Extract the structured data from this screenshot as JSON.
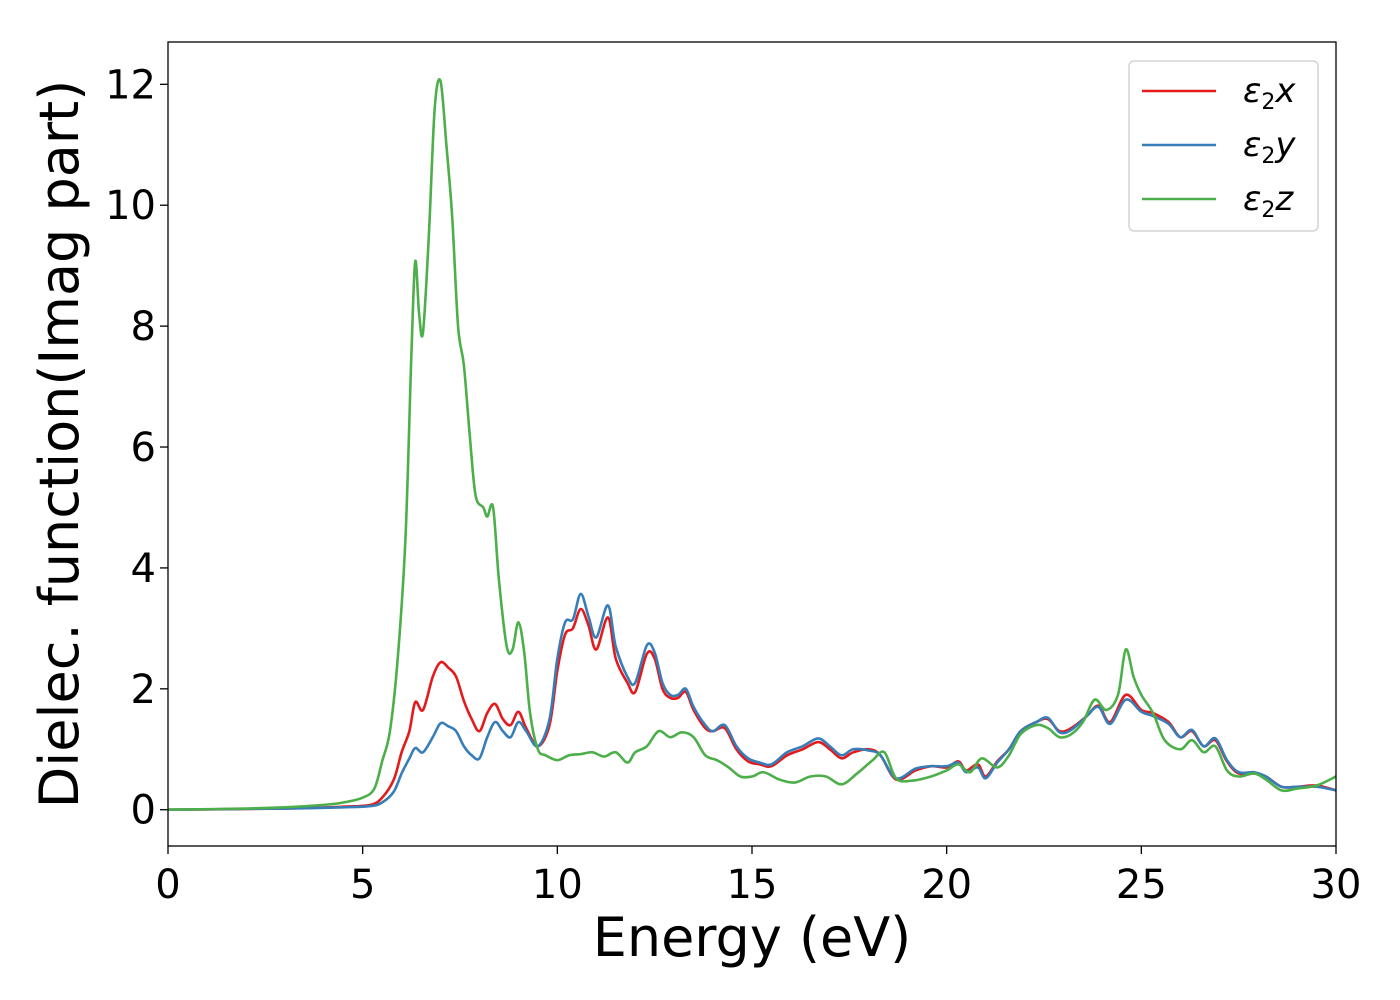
{
  "chart_data": {
    "type": "line",
    "title": "",
    "xlabel": "Energy (eV)",
    "ylabel": "Dielec. function(Imag part)",
    "xlim": [
      0,
      30
    ],
    "ylim": [
      -0.6,
      12.7
    ],
    "xticks": [
      "0",
      "5",
      "10",
      "15",
      "20",
      "25",
      "30"
    ],
    "yticks": [
      "0",
      "2",
      "4",
      "6",
      "8",
      "10",
      "12"
    ],
    "grid": false,
    "legend_position": "top-right",
    "series": [
      {
        "name": "ε2x",
        "legend_base": "ε",
        "legend_sub": "2",
        "legend_var": "x",
        "color": "#e41a1c",
        "points": [
          [
            0,
            0
          ],
          [
            3,
            0.02
          ],
          [
            4.5,
            0.05
          ],
          [
            5.2,
            0.08
          ],
          [
            5.5,
            0.2
          ],
          [
            5.8,
            0.5
          ],
          [
            6.0,
            0.95
          ],
          [
            6.2,
            1.3
          ],
          [
            6.35,
            1.78
          ],
          [
            6.55,
            1.65
          ],
          [
            6.8,
            2.2
          ],
          [
            7.0,
            2.44
          ],
          [
            7.2,
            2.35
          ],
          [
            7.4,
            2.2
          ],
          [
            7.6,
            1.8
          ],
          [
            7.8,
            1.5
          ],
          [
            8.0,
            1.3
          ],
          [
            8.2,
            1.6
          ],
          [
            8.4,
            1.75
          ],
          [
            8.6,
            1.5
          ],
          [
            8.8,
            1.4
          ],
          [
            9.0,
            1.62
          ],
          [
            9.2,
            1.35
          ],
          [
            9.5,
            1.05
          ],
          [
            9.8,
            1.4
          ],
          [
            10.0,
            2.3
          ],
          [
            10.2,
            2.9
          ],
          [
            10.4,
            3.0
          ],
          [
            10.6,
            3.32
          ],
          [
            10.8,
            3.05
          ],
          [
            11.0,
            2.65
          ],
          [
            11.3,
            3.18
          ],
          [
            11.5,
            2.5
          ],
          [
            11.8,
            2.1
          ],
          [
            12.0,
            1.95
          ],
          [
            12.3,
            2.58
          ],
          [
            12.5,
            2.5
          ],
          [
            12.7,
            2.0
          ],
          [
            12.9,
            1.85
          ],
          [
            13.1,
            1.85
          ],
          [
            13.3,
            1.95
          ],
          [
            13.5,
            1.65
          ],
          [
            13.8,
            1.35
          ],
          [
            14.0,
            1.3
          ],
          [
            14.3,
            1.35
          ],
          [
            14.6,
            1.0
          ],
          [
            14.9,
            0.8
          ],
          [
            15.2,
            0.75
          ],
          [
            15.5,
            0.72
          ],
          [
            15.9,
            0.9
          ],
          [
            16.3,
            1.0
          ],
          [
            16.7,
            1.12
          ],
          [
            17.0,
            1.0
          ],
          [
            17.3,
            0.85
          ],
          [
            17.6,
            0.95
          ],
          [
            18.0,
            1.0
          ],
          [
            18.3,
            0.9
          ],
          [
            18.7,
            0.5
          ],
          [
            19.2,
            0.65
          ],
          [
            19.6,
            0.72
          ],
          [
            20.0,
            0.7
          ],
          [
            20.3,
            0.8
          ],
          [
            20.5,
            0.65
          ],
          [
            20.8,
            0.75
          ],
          [
            21.0,
            0.55
          ],
          [
            21.3,
            0.8
          ],
          [
            21.6,
            1.0
          ],
          [
            21.9,
            1.3
          ],
          [
            22.3,
            1.45
          ],
          [
            22.6,
            1.5
          ],
          [
            22.9,
            1.3
          ],
          [
            23.2,
            1.35
          ],
          [
            23.6,
            1.55
          ],
          [
            23.9,
            1.72
          ],
          [
            24.2,
            1.45
          ],
          [
            24.6,
            1.9
          ],
          [
            25.0,
            1.65
          ],
          [
            25.3,
            1.6
          ],
          [
            25.7,
            1.45
          ],
          [
            26.0,
            1.2
          ],
          [
            26.3,
            1.3
          ],
          [
            26.6,
            1.05
          ],
          [
            26.9,
            1.15
          ],
          [
            27.2,
            0.8
          ],
          [
            27.5,
            0.6
          ],
          [
            27.9,
            0.6
          ],
          [
            28.2,
            0.55
          ],
          [
            28.6,
            0.38
          ],
          [
            29.0,
            0.38
          ],
          [
            29.5,
            0.4
          ],
          [
            30.0,
            0.32
          ]
        ]
      },
      {
        "name": "ε2y",
        "legend_base": "ε",
        "legend_sub": "2",
        "legend_var": "y",
        "color": "#377eb8",
        "points": [
          [
            0,
            0
          ],
          [
            3,
            0.02
          ],
          [
            4.5,
            0.04
          ],
          [
            5.2,
            0.06
          ],
          [
            5.5,
            0.12
          ],
          [
            5.8,
            0.3
          ],
          [
            6.0,
            0.6
          ],
          [
            6.2,
            0.85
          ],
          [
            6.35,
            1.02
          ],
          [
            6.55,
            0.95
          ],
          [
            6.8,
            1.2
          ],
          [
            7.0,
            1.43
          ],
          [
            7.2,
            1.38
          ],
          [
            7.4,
            1.3
          ],
          [
            7.6,
            1.05
          ],
          [
            7.8,
            0.9
          ],
          [
            8.0,
            0.85
          ],
          [
            8.2,
            1.2
          ],
          [
            8.4,
            1.45
          ],
          [
            8.6,
            1.3
          ],
          [
            8.8,
            1.2
          ],
          [
            9.0,
            1.45
          ],
          [
            9.2,
            1.3
          ],
          [
            9.5,
            1.05
          ],
          [
            9.8,
            1.5
          ],
          [
            10.0,
            2.5
          ],
          [
            10.2,
            3.1
          ],
          [
            10.4,
            3.15
          ],
          [
            10.6,
            3.57
          ],
          [
            10.8,
            3.2
          ],
          [
            11.0,
            2.85
          ],
          [
            11.3,
            3.38
          ],
          [
            11.5,
            2.7
          ],
          [
            11.8,
            2.2
          ],
          [
            12.0,
            2.1
          ],
          [
            12.3,
            2.72
          ],
          [
            12.5,
            2.6
          ],
          [
            12.7,
            2.1
          ],
          [
            12.9,
            1.9
          ],
          [
            13.1,
            1.9
          ],
          [
            13.3,
            2.0
          ],
          [
            13.5,
            1.7
          ],
          [
            13.8,
            1.4
          ],
          [
            14.0,
            1.3
          ],
          [
            14.3,
            1.4
          ],
          [
            14.6,
            1.05
          ],
          [
            14.9,
            0.85
          ],
          [
            15.2,
            0.78
          ],
          [
            15.5,
            0.75
          ],
          [
            15.9,
            0.95
          ],
          [
            16.3,
            1.05
          ],
          [
            16.7,
            1.18
          ],
          [
            17.0,
            1.05
          ],
          [
            17.3,
            0.9
          ],
          [
            17.6,
            1.0
          ],
          [
            18.0,
            0.98
          ],
          [
            18.3,
            0.9
          ],
          [
            18.7,
            0.52
          ],
          [
            19.2,
            0.68
          ],
          [
            19.6,
            0.72
          ],
          [
            20.0,
            0.72
          ],
          [
            20.3,
            0.78
          ],
          [
            20.5,
            0.62
          ],
          [
            20.8,
            0.7
          ],
          [
            21.0,
            0.52
          ],
          [
            21.3,
            0.78
          ],
          [
            21.6,
            1.0
          ],
          [
            21.9,
            1.3
          ],
          [
            22.3,
            1.45
          ],
          [
            22.6,
            1.52
          ],
          [
            22.9,
            1.28
          ],
          [
            23.2,
            1.32
          ],
          [
            23.6,
            1.55
          ],
          [
            23.9,
            1.7
          ],
          [
            24.2,
            1.42
          ],
          [
            24.6,
            1.82
          ],
          [
            25.0,
            1.62
          ],
          [
            25.3,
            1.55
          ],
          [
            25.7,
            1.42
          ],
          [
            26.0,
            1.2
          ],
          [
            26.3,
            1.32
          ],
          [
            26.6,
            1.05
          ],
          [
            26.9,
            1.18
          ],
          [
            27.2,
            0.82
          ],
          [
            27.5,
            0.62
          ],
          [
            27.9,
            0.62
          ],
          [
            28.2,
            0.55
          ],
          [
            28.6,
            0.38
          ],
          [
            29.0,
            0.38
          ],
          [
            29.5,
            0.38
          ],
          [
            30.0,
            0.32
          ]
        ]
      },
      {
        "name": "ε2z",
        "legend_base": "ε",
        "legend_sub": "2",
        "legend_var": "z",
        "color": "#4daf4a",
        "points": [
          [
            0,
            0
          ],
          [
            2,
            0.02
          ],
          [
            3,
            0.04
          ],
          [
            4,
            0.08
          ],
          [
            4.5,
            0.12
          ],
          [
            5.0,
            0.2
          ],
          [
            5.3,
            0.35
          ],
          [
            5.5,
            0.8
          ],
          [
            5.7,
            1.3
          ],
          [
            5.9,
            2.5
          ],
          [
            6.1,
            4.5
          ],
          [
            6.25,
            7.5
          ],
          [
            6.35,
            9.07
          ],
          [
            6.45,
            8.2
          ],
          [
            6.55,
            7.9
          ],
          [
            6.7,
            9.5
          ],
          [
            6.85,
            11.6
          ],
          [
            7.0,
            12.05
          ],
          [
            7.15,
            11.0
          ],
          [
            7.3,
            9.8
          ],
          [
            7.45,
            8.0
          ],
          [
            7.6,
            7.35
          ],
          [
            7.75,
            6.2
          ],
          [
            7.9,
            5.2
          ],
          [
            8.1,
            5.0
          ],
          [
            8.2,
            4.85
          ],
          [
            8.35,
            5.0
          ],
          [
            8.5,
            3.8
          ],
          [
            8.7,
            2.7
          ],
          [
            8.85,
            2.65
          ],
          [
            9.0,
            3.1
          ],
          [
            9.15,
            2.6
          ],
          [
            9.3,
            1.6
          ],
          [
            9.5,
            1.0
          ],
          [
            9.7,
            0.9
          ],
          [
            10.0,
            0.82
          ],
          [
            10.3,
            0.9
          ],
          [
            10.6,
            0.92
          ],
          [
            10.9,
            0.95
          ],
          [
            11.2,
            0.88
          ],
          [
            11.5,
            0.95
          ],
          [
            11.8,
            0.78
          ],
          [
            12.0,
            0.95
          ],
          [
            12.3,
            1.05
          ],
          [
            12.6,
            1.3
          ],
          [
            12.9,
            1.2
          ],
          [
            13.2,
            1.28
          ],
          [
            13.5,
            1.2
          ],
          [
            13.8,
            0.9
          ],
          [
            14.1,
            0.82
          ],
          [
            14.4,
            0.7
          ],
          [
            14.7,
            0.55
          ],
          [
            15.0,
            0.55
          ],
          [
            15.3,
            0.62
          ],
          [
            15.7,
            0.5
          ],
          [
            16.1,
            0.45
          ],
          [
            16.5,
            0.55
          ],
          [
            16.9,
            0.55
          ],
          [
            17.3,
            0.42
          ],
          [
            17.7,
            0.6
          ],
          [
            18.1,
            0.82
          ],
          [
            18.4,
            0.95
          ],
          [
            18.7,
            0.52
          ],
          [
            19.1,
            0.48
          ],
          [
            19.6,
            0.55
          ],
          [
            20.0,
            0.65
          ],
          [
            20.3,
            0.75
          ],
          [
            20.6,
            0.62
          ],
          [
            20.9,
            0.85
          ],
          [
            21.3,
            0.7
          ],
          [
            21.6,
            0.9
          ],
          [
            21.9,
            1.25
          ],
          [
            22.3,
            1.4
          ],
          [
            22.6,
            1.35
          ],
          [
            22.9,
            1.2
          ],
          [
            23.2,
            1.25
          ],
          [
            23.5,
            1.45
          ],
          [
            23.8,
            1.82
          ],
          [
            24.1,
            1.65
          ],
          [
            24.4,
            1.9
          ],
          [
            24.6,
            2.65
          ],
          [
            24.8,
            2.2
          ],
          [
            25.0,
            1.9
          ],
          [
            25.3,
            1.6
          ],
          [
            25.6,
            1.15
          ],
          [
            26.0,
            1.0
          ],
          [
            26.3,
            1.15
          ],
          [
            26.6,
            0.95
          ],
          [
            26.9,
            1.05
          ],
          [
            27.2,
            0.65
          ],
          [
            27.5,
            0.55
          ],
          [
            27.9,
            0.6
          ],
          [
            28.2,
            0.5
          ],
          [
            28.6,
            0.32
          ],
          [
            29.0,
            0.35
          ],
          [
            29.5,
            0.4
          ],
          [
            30.0,
            0.55
          ]
        ]
      }
    ]
  }
}
